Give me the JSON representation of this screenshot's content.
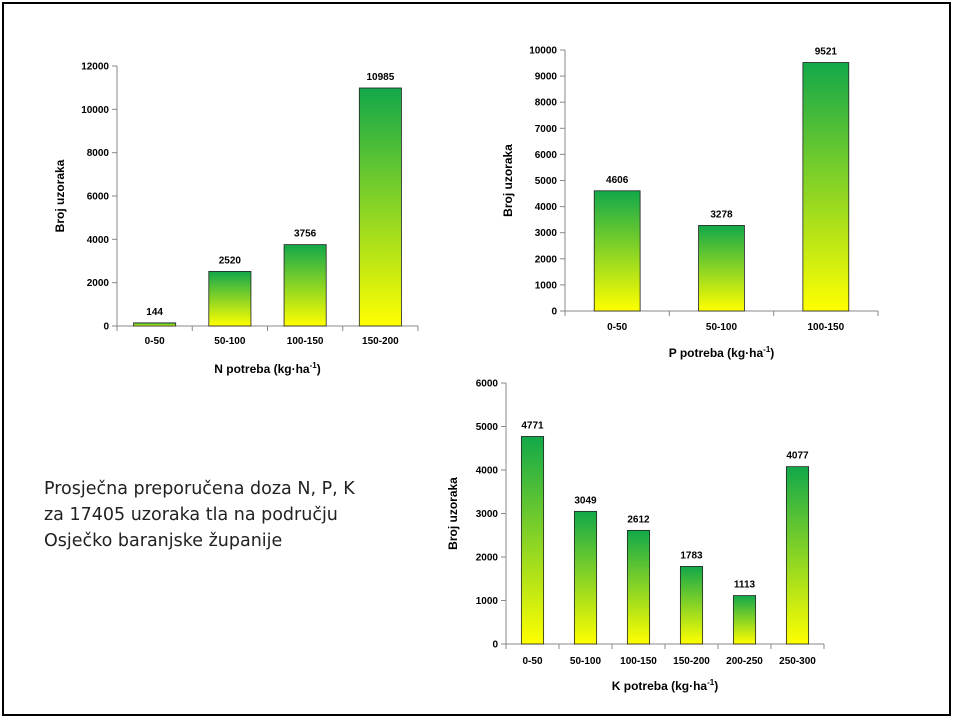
{
  "caption": {
    "line1": "Prosječna preporučena doza N, P, K",
    "line2": "za 17405 uzoraka tla na području",
    "line3": "Osječko baranjske županije"
  },
  "colors": {
    "bar_top": "#12a84a",
    "bar_bottom": "#ffff00",
    "axis": "#888888"
  },
  "chart_data": [
    {
      "id": "n",
      "type": "bar",
      "title": "",
      "categories": [
        "0-50",
        "50-100",
        "100-150",
        "150-200"
      ],
      "values": [
        144,
        2520,
        3756,
        10985
      ],
      "ylabel": "Broj uzoraka",
      "xlabel": {
        "main": "N potreba (kg·ha",
        "sup": "-1",
        "close": ")"
      },
      "ylim": [
        0,
        12000
      ],
      "yticks": [
        0,
        2000,
        4000,
        6000,
        8000,
        10000,
        12000
      ],
      "grid": false,
      "legend": "none"
    },
    {
      "id": "p",
      "type": "bar",
      "title": "",
      "categories": [
        "0-50",
        "50-100",
        "100-150"
      ],
      "values": [
        4606,
        3278,
        9521
      ],
      "ylabel": "Broj uzoraka",
      "xlabel": {
        "main": "P potreba (kg·ha",
        "sup": "-1",
        "close": ")"
      },
      "ylim": [
        0,
        10000
      ],
      "yticks": [
        0,
        1000,
        2000,
        3000,
        4000,
        5000,
        6000,
        7000,
        8000,
        9000,
        10000
      ],
      "grid": false,
      "legend": "none"
    },
    {
      "id": "k",
      "type": "bar",
      "title": "",
      "categories": [
        "0-50",
        "50-100",
        "100-150",
        "150-200",
        "200-250",
        "250-300"
      ],
      "values": [
        4771,
        3049,
        2612,
        1783,
        1113,
        4077
      ],
      "ylabel": "Broj uzoraka",
      "xlabel": {
        "main": "K potreba (kg·ha",
        "sup": "-1",
        "close": ")"
      },
      "ylim": [
        0,
        6000
      ],
      "yticks": [
        0,
        1000,
        2000,
        3000,
        4000,
        5000,
        6000
      ],
      "grid": false,
      "legend": "none"
    }
  ]
}
